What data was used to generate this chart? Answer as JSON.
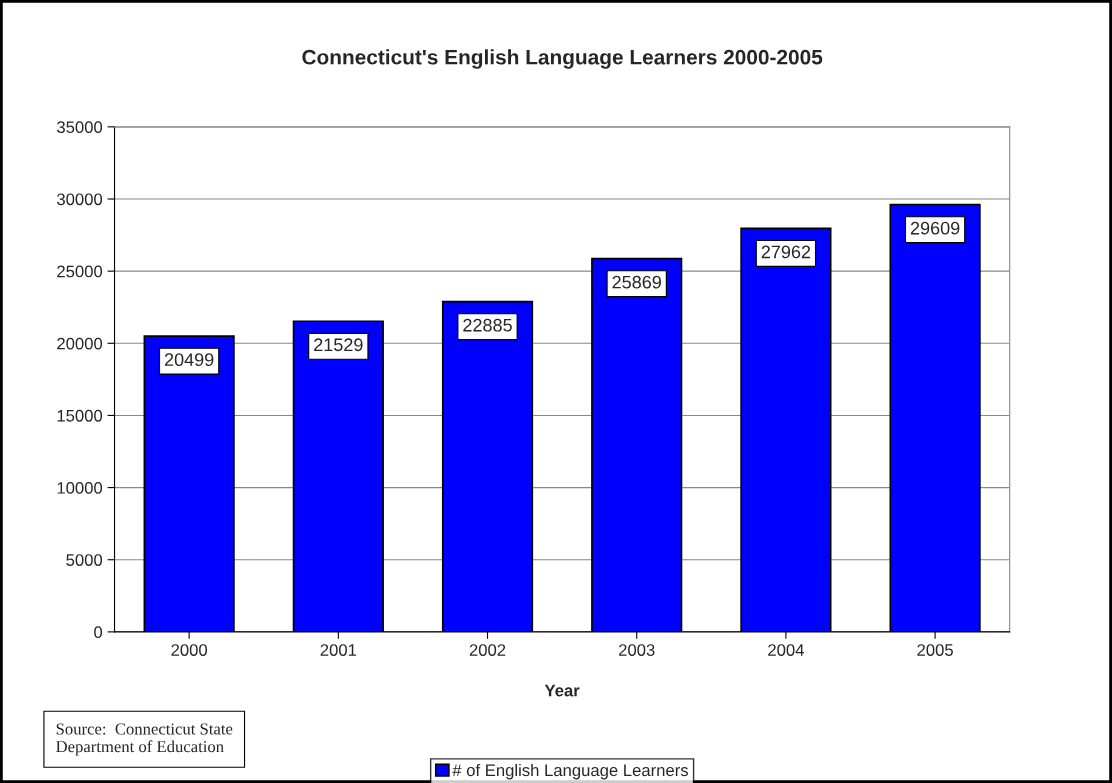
{
  "chart_data": {
    "type": "bar",
    "title": "Connecticut's English Language Learners 2000-2005",
    "xlabel": "Year",
    "categories": [
      "2000",
      "2001",
      "2002",
      "2003",
      "2004",
      "2005"
    ],
    "series": [
      {
        "name": "# of English Language Learners",
        "color": "#0000ff",
        "values": [
          20499,
          21529,
          22885,
          25869,
          27962,
          29609
        ]
      }
    ],
    "ylim": [
      0,
      35000
    ],
    "yticks": [
      0,
      5000,
      10000,
      15000,
      20000,
      25000,
      30000,
      35000
    ],
    "grid": "y",
    "legend": "bottom",
    "data_labels": true,
    "annotations": [
      "Source:  Connecticut State\nDepartment of Education"
    ]
  }
}
